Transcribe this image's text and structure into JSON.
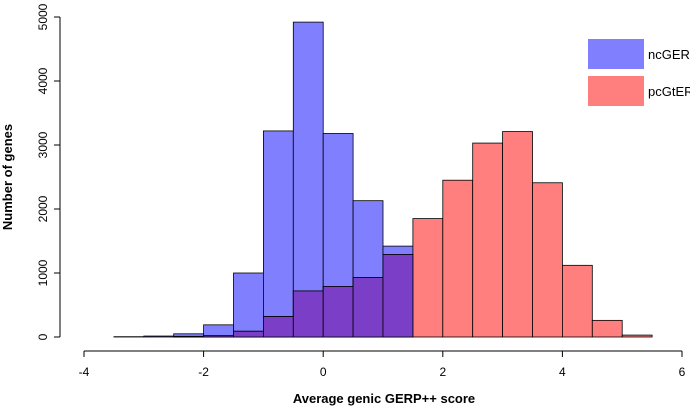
{
  "chart_data": {
    "type": "histogram",
    "title": "",
    "xlabel": "Average genic GERP++ score",
    "ylabel": "Number of genes",
    "xlim": [
      -4,
      6
    ],
    "ylim": [
      0,
      5000
    ],
    "x_ticks": [
      -4,
      -2,
      0,
      2,
      4,
      6
    ],
    "y_ticks": [
      0,
      1000,
      2000,
      3000,
      4000,
      5000
    ],
    "bin_width": 0.5,
    "bin_starts": [
      -3.5,
      -3.0,
      -2.5,
      -2.0,
      -1.5,
      -1.0,
      -0.5,
      0.0,
      0.5,
      1.0,
      1.5,
      2.0,
      2.5,
      3.0,
      3.5,
      4.0,
      4.5,
      5.0
    ],
    "legend_position": "top-right",
    "overlap_color": "#7b3fc7",
    "series": [
      {
        "name": "ncGERP",
        "color": "#8080ff",
        "values": [
          5,
          15,
          50,
          190,
          1000,
          3220,
          4920,
          3180,
          2130,
          1420,
          0,
          0,
          0,
          0,
          0,
          0,
          0,
          0
        ]
      },
      {
        "name": "pcGtERP",
        "color": "#ff7f7f",
        "values": [
          0,
          0,
          10,
          20,
          90,
          320,
          720,
          790,
          930,
          1290,
          1850,
          2450,
          3030,
          3210,
          2410,
          1120,
          260,
          30
        ]
      }
    ]
  }
}
